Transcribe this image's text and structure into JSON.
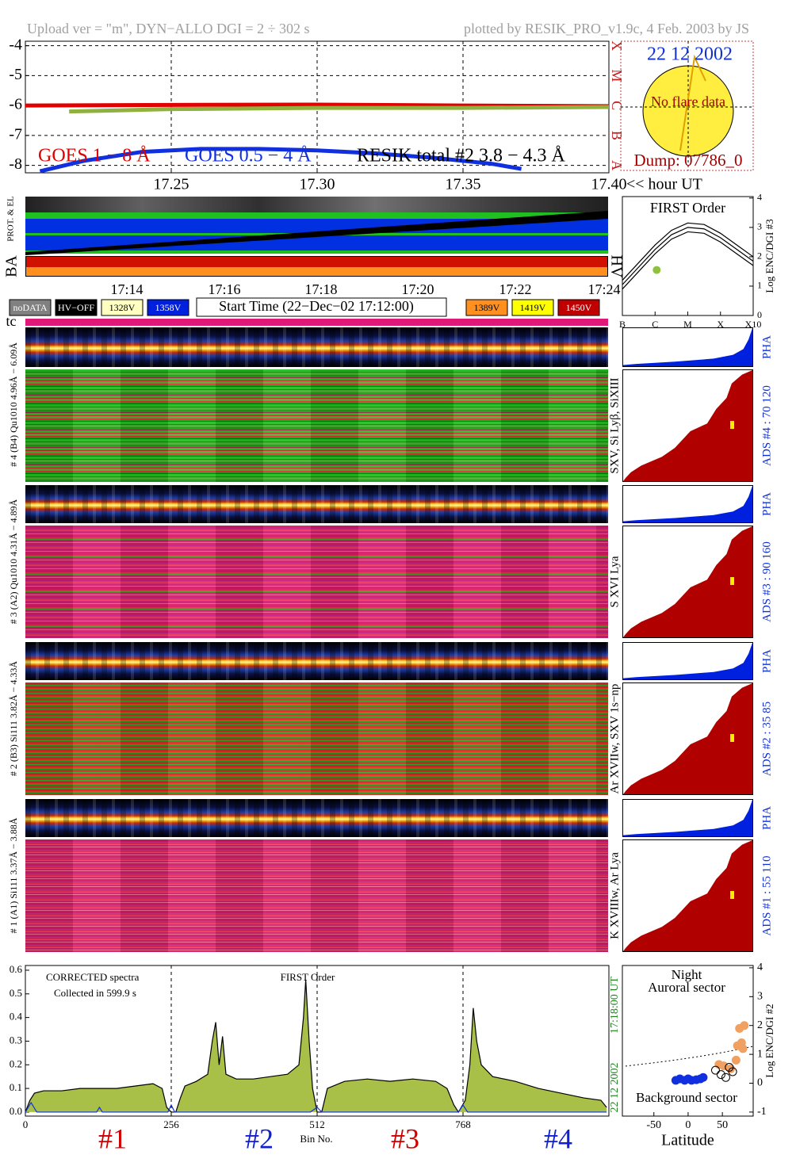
{
  "header": {
    "left": "Upload ver = \"m\", DYN−ALLO DGI =   2 ÷ 302 s",
    "right": "plotted by RESIK_PRO_v1.9c, 4 Feb. 2003 by JS"
  },
  "sun": {
    "date": "22 12 2002",
    "status": "No flare data",
    "dump": "Dump: 07786_0"
  },
  "status": {
    "left_label": "PROT. & EL",
    "ba_label": "BA",
    "hv_label": "HV",
    "time_labels": [
      "17:14",
      "17:16",
      "17:18",
      "17:20",
      "17:22",
      "17:24"
    ],
    "legend": [
      {
        "label": "noDATA",
        "color": "#808080",
        "text_color": "#ffffff"
      },
      {
        "label": "HV−OFF",
        "color": "#000000",
        "text_color": "#ffffff"
      },
      {
        "label": "1328V",
        "color": "#ffffc0",
        "text_color": "#000000"
      },
      {
        "label": "1358V",
        "color": "#0020e0",
        "text_color": "#ffffff"
      },
      {
        "label": "1389V",
        "color": "#ff9020",
        "text_color": "#000000"
      },
      {
        "label": "1419V",
        "color": "#ffff00",
        "text_color": "#000000"
      },
      {
        "label": "1450V",
        "color": "#c00000",
        "text_color": "#ffffff"
      }
    ],
    "start_time": "Start Time (22−Dec−02 17:12:00)",
    "tc_label": "tc"
  },
  "detectors": [
    {
      "label": "# 4 (B4) Qu1010 4.96Å − 6.09Å",
      "lines": "SXV, Si Lyβ, SiXIII",
      "pha": "PHA",
      "ads": "ADS #4 :   70 120"
    },
    {
      "label": "# 3 (A2) Qu1010 4.31Å − 4.89Å",
      "lines": "S XVI Lya",
      "pha": "PHA",
      "ads": "ADS #3 :   90 160"
    },
    {
      "label": "# 2 (B3) Si111 3.82Å − 4.33Å",
      "lines": "Ar XVIIw, SXV 1s−np",
      "pha": "PHA",
      "ads": "ADS #2 :   35 85"
    },
    {
      "label": "# 1 (A1) Si111 3.37Å − 3.88Å",
      "lines": "K XVIIIw, Ar Lya",
      "pha": "PHA",
      "ads": "ADS #1 :   55 110"
    }
  ],
  "chart_data": [
    {
      "type": "line",
      "xlabel": "<< hour UT",
      "xlim": [
        17.2,
        17.4
      ],
      "ylim": [
        -8.25,
        -3.85
      ],
      "xticks": [
        17.25,
        {
          "value": 17.3,
          "label": "17.30"
        },
        17.35,
        {
          "value": 17.4,
          "label": "17.40"
        }
      ],
      "yticks": [
        -4,
        -5,
        -6,
        -7,
        -8
      ],
      "y2ticks": [
        {
          "value": -8,
          "label": "A"
        },
        {
          "value": -7,
          "label": "B"
        },
        {
          "value": -6,
          "label": "C"
        },
        {
          "value": -5,
          "label": "M"
        },
        {
          "value": -4,
          "label": "X"
        }
      ],
      "grid": "both",
      "series": [
        {
          "name": "GOES 1 − 8 Å",
          "color": "#e00000",
          "label_color": "#e00000",
          "x": [
            17.2,
            17.25,
            17.3,
            17.35,
            17.4
          ],
          "values": [
            -6.0,
            -5.98,
            -5.97,
            -6.0,
            -6.02
          ]
        },
        {
          "name": "GOES 0.5 − 4 Å",
          "color": "#1030e0",
          "label_color": "#1030e0",
          "x": [
            17.205,
            17.22,
            17.24,
            17.26,
            17.28,
            17.3,
            17.32,
            17.34,
            17.36,
            17.37
          ],
          "values": [
            -8.2,
            -7.85,
            -7.55,
            -7.45,
            -7.45,
            -7.5,
            -7.6,
            -7.75,
            -7.95,
            -8.12
          ]
        },
        {
          "name": "RESIK total #2  3.8 − 4.3 Å",
          "color": "#90b040",
          "label_color": "#000000",
          "x": [
            17.215,
            17.25,
            17.3,
            17.35,
            17.4
          ],
          "values": [
            -6.2,
            -6.12,
            -6.08,
            -6.08,
            -6.05
          ]
        }
      ]
    },
    {
      "type": "line",
      "title": "FIRST Order",
      "ylabel": "Log ENC/DGI #3",
      "xlim": [
        0,
        4
      ],
      "ylim": [
        0,
        4.05
      ],
      "xticks": [
        {
          "value": 0,
          "label": "B"
        },
        {
          "value": 1,
          "label": "C"
        },
        {
          "value": 2,
          "label": "M"
        },
        {
          "value": 3,
          "label": "X"
        },
        {
          "value": 4,
          "label": "X10"
        }
      ],
      "yticks": [
        0,
        1,
        2,
        3,
        4
      ],
      "yaxis_side": "right",
      "series": [
        {
          "color": "#000000",
          "x": [
            0,
            0.5,
            1,
            1.5,
            2,
            2.5,
            3,
            3.5,
            4
          ],
          "values": [
            1.2,
            1.8,
            2.4,
            2.9,
            3.15,
            3.1,
            2.8,
            2.4,
            2.0
          ]
        },
        {
          "color": "#000000",
          "x": [
            0,
            0.5,
            1,
            1.5,
            2,
            2.5,
            3,
            3.5,
            4
          ],
          "values": [
            1.05,
            1.65,
            2.25,
            2.75,
            3.0,
            2.95,
            2.65,
            2.25,
            1.85
          ]
        },
        {
          "color": "#000000",
          "x": [
            0,
            0.5,
            1,
            1.5,
            2,
            2.5,
            3,
            3.5,
            4
          ],
          "values": [
            0.9,
            1.5,
            2.1,
            2.6,
            2.85,
            2.8,
            2.5,
            2.1,
            1.7
          ]
        }
      ],
      "points": {
        "color": "#90c040",
        "x": [
          1.05
        ],
        "values": [
          1.55
        ]
      }
    },
    {
      "type": "area",
      "xlabel": "Bin No.",
      "xlim": [
        0,
        1024
      ],
      "ylim": [
        -0.017,
        0.62
      ],
      "xticks": [
        0,
        256,
        512,
        768
      ],
      "yticks": [
        {
          "value": 0,
          "label": "0.0"
        },
        0.1,
        0.2,
        0.3,
        0.4,
        0.5,
        0.6
      ],
      "grid": "x",
      "annotations": [
        "CORRECTED spectra",
        "Collected in   599.9 s",
        "FIRST Order"
      ],
      "date_label": "22 12 2002",
      "time_label": "17:18:00 UT",
      "sections": [
        {
          "label": "#1",
          "color": "#d00000"
        },
        {
          "label": "#2",
          "color": "#1020d0"
        },
        {
          "label": "#3",
          "color": "#d00000"
        },
        {
          "label": "#4",
          "color": "#1020d0"
        }
      ],
      "series": [
        {
          "color": "#000000",
          "fill": "#a8c048",
          "x": [
            0,
            8,
            16,
            32,
            64,
            96,
            128,
            160,
            192,
            224,
            240,
            248,
            256,
            264,
            272,
            280,
            300,
            320,
            328,
            334,
            340,
            346,
            352,
            370,
            400,
            430,
            460,
            480,
            488,
            492,
            498,
            504,
            512,
            520,
            530,
            560,
            600,
            640,
            680,
            720,
            740,
            752,
            760,
            772,
            780,
            786,
            792,
            800,
            820,
            860,
            900,
            940,
            980,
            1010,
            1020
          ],
          "values": [
            0.0,
            0.05,
            0.08,
            0.09,
            0.09,
            0.1,
            0.1,
            0.1,
            0.11,
            0.12,
            0.1,
            0.02,
            0.0,
            0.0,
            0.06,
            0.11,
            0.13,
            0.16,
            0.3,
            0.38,
            0.2,
            0.32,
            0.16,
            0.14,
            0.14,
            0.15,
            0.16,
            0.2,
            0.4,
            0.56,
            0.3,
            0.1,
            0.0,
            0.0,
            0.1,
            0.13,
            0.14,
            0.13,
            0.14,
            0.13,
            0.1,
            0.03,
            0.0,
            0.05,
            0.2,
            0.44,
            0.3,
            0.2,
            0.15,
            0.13,
            0.1,
            0.08,
            0.06,
            0.05,
            0.02
          ]
        },
        {
          "color": "#1030e0",
          "x": [
            0,
            10,
            20,
            125,
            130,
            135,
            250,
            256,
            262,
            500,
            512,
            520,
            760,
            768,
            776,
            1020
          ],
          "values": [
            0.0,
            0.04,
            0.0,
            0.0,
            0.02,
            0.0,
            0.0,
            0.03,
            0.0,
            0.0,
            0.02,
            0.0,
            0.0,
            0.03,
            0.0,
            0.0
          ]
        }
      ]
    },
    {
      "type": "scatter",
      "xlabel": "Latitude",
      "ylabel": "Log ENC/DGI #2",
      "xlim": [
        -96,
        95
      ],
      "ylim": [
        -1.14,
        4.08
      ],
      "xticks": [
        -50,
        0,
        50
      ],
      "yticks": [
        -1,
        0,
        1,
        2,
        3,
        4
      ],
      "yaxis_side": "right",
      "annotations": [
        "Night",
        "Auroral sector",
        "Background sector"
      ],
      "series": [
        {
          "color": "#1030e0",
          "marker": "filled",
          "x": [
            -18,
            -12,
            -5,
            0,
            5,
            12,
            18,
            22
          ],
          "values": [
            0.1,
            0.15,
            0.1,
            0.15,
            0.1,
            0.12,
            0.15,
            0.2
          ]
        },
        {
          "color": "#f0a060",
          "marker": "filled",
          "x": [
            45,
            52,
            62,
            70,
            72,
            75,
            78,
            80,
            82
          ],
          "values": [
            0.65,
            0.6,
            0.5,
            0.8,
            1.3,
            1.9,
            1.4,
            1.2,
            2.0
          ]
        },
        {
          "color": "#000000",
          "marker": "open",
          "x": [
            40,
            48,
            55,
            60,
            65
          ],
          "values": [
            0.45,
            0.3,
            0.2,
            0.55,
            0.4
          ]
        }
      ]
    }
  ]
}
